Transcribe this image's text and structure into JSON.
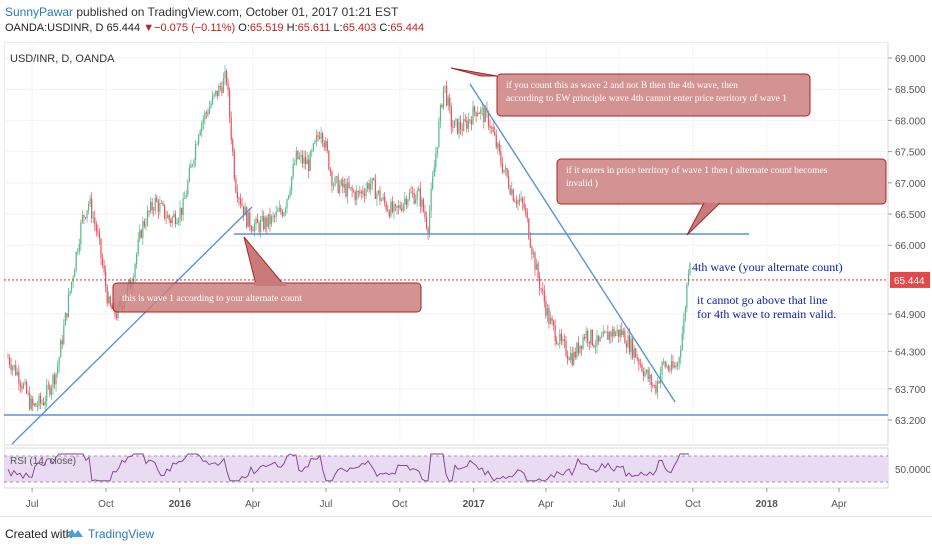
{
  "header": {
    "author": "SunnyPawar",
    "published_text": " published on TradingView.com, October 01, 2017 01:21 EST",
    "symbol": "OANDA:USDINR, D",
    "last": "65.444",
    "change_arrow": "▼",
    "change": "−0.075 (−0.11%)",
    "open_label": "O:",
    "open": "65.519",
    "high_label": "H:",
    "high": "65.611",
    "low_label": "L:",
    "low": "65.403",
    "close_label": "C:",
    "close": "65.444"
  },
  "chart_data": {
    "type": "candlestick",
    "symbol_label": "USD/INR, D, OANDA",
    "ylim": [
      63.0,
      69.1
    ],
    "y_ticks": [
      "69.000",
      "68.500",
      "68.000",
      "67.500",
      "67.000",
      "66.500",
      "66.000",
      "65.444",
      "64.900",
      "64.300",
      "63.700",
      "63.200"
    ],
    "last_price_label": "65.444",
    "last_price": 65.444,
    "x_ticks": [
      "Jul",
      "Oct",
      "2016",
      "Apr",
      "Jul",
      "Oct",
      "2017",
      "Apr",
      "Jul",
      "Oct",
      "2018",
      "Apr"
    ],
    "x_tick_bold": [
      false,
      false,
      true,
      false,
      false,
      false,
      true,
      false,
      false,
      false,
      true,
      false
    ],
    "price_path": [
      [
        "2015-06-01",
        64.2
      ],
      [
        "2015-06-15",
        63.9
      ],
      [
        "2015-07-01",
        63.4
      ],
      [
        "2015-07-15",
        63.5
      ],
      [
        "2015-08-01",
        64.0
      ],
      [
        "2015-08-15",
        65.1
      ],
      [
        "2015-09-01",
        66.4
      ],
      [
        "2015-09-10",
        66.7
      ],
      [
        "2015-09-20",
        66.2
      ],
      [
        "2015-10-05",
        65.0
      ],
      [
        "2015-10-15",
        64.9
      ],
      [
        "2015-11-01",
        65.4
      ],
      [
        "2015-11-15",
        66.3
      ],
      [
        "2015-12-01",
        66.7
      ],
      [
        "2015-12-20",
        66.4
      ],
      [
        "2016-01-05",
        66.6
      ],
      [
        "2016-01-25",
        67.9
      ],
      [
        "2016-02-10",
        68.3
      ],
      [
        "2016-02-28",
        68.7
      ],
      [
        "2016-03-10",
        67.0
      ],
      [
        "2016-03-25",
        66.4
      ],
      [
        "2016-04-05",
        66.3
      ],
      [
        "2016-04-25",
        66.4
      ],
      [
        "2016-05-10",
        66.6
      ],
      [
        "2016-05-25",
        67.4
      ],
      [
        "2016-06-10",
        67.3
      ],
      [
        "2016-06-25",
        67.9
      ],
      [
        "2016-07-10",
        67.0
      ],
      [
        "2016-07-25",
        66.9
      ],
      [
        "2016-08-10",
        66.8
      ],
      [
        "2016-08-25",
        67.0
      ],
      [
        "2016-09-10",
        66.7
      ],
      [
        "2016-09-25",
        66.5
      ],
      [
        "2016-10-10",
        66.8
      ],
      [
        "2016-10-25",
        66.8
      ],
      [
        "2016-11-05",
        66.3
      ],
      [
        "2016-11-15",
        67.5
      ],
      [
        "2016-11-25",
        68.6
      ],
      [
        "2016-12-05",
        67.9
      ],
      [
        "2016-12-20",
        67.9
      ],
      [
        "2017-01-05",
        68.2
      ],
      [
        "2017-01-20",
        68.0
      ],
      [
        "2017-02-05",
        67.3
      ],
      [
        "2017-02-20",
        66.8
      ],
      [
        "2017-03-05",
        66.6
      ],
      [
        "2017-03-20",
        65.6
      ],
      [
        "2017-04-05",
        64.8
      ],
      [
        "2017-04-20",
        64.4
      ],
      [
        "2017-05-05",
        64.2
      ],
      [
        "2017-05-20",
        64.6
      ],
      [
        "2017-06-05",
        64.4
      ],
      [
        "2017-06-20",
        64.6
      ],
      [
        "2017-07-05",
        64.6
      ],
      [
        "2017-07-20",
        64.3
      ],
      [
        "2017-08-05",
        63.9
      ],
      [
        "2017-08-15",
        63.7
      ],
      [
        "2017-08-25",
        64.1
      ],
      [
        "2017-09-05",
        64.0
      ],
      [
        "2017-09-12",
        64.1
      ],
      [
        "2017-09-20",
        64.8
      ],
      [
        "2017-09-27",
        65.9
      ],
      [
        "2017-09-29",
        65.44
      ]
    ],
    "annotations": {
      "callout_top": "if you count this as wave 2 and not B then the 4th wave, then according to EW principle wave 4th cannot enter price territory of wave 1",
      "callout_right": "if it enters in price territory of wave 1 then ( alternate count  becomes invalid )",
      "callout_left": "this is wave 1 according to your alternate count",
      "text_4th": "4th wave (your alternate count)",
      "text_line1": "it cannot go above that line",
      "text_line2": "for 4th wave to remain valid."
    },
    "rsi": {
      "label": "RSI (14, close)",
      "tick": "50.0000",
      "overbought": 70,
      "oversold": 30
    }
  },
  "footer": {
    "created_with": "Created with",
    "brand": "TradingView"
  }
}
